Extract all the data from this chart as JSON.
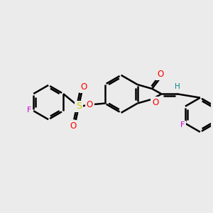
{
  "bg_color": "#ebebeb",
  "bond_color": "#000000",
  "bond_width": 1.8,
  "atom_colors": {
    "F_left": "#cc00cc",
    "F_right": "#cc00cc",
    "O": "#ff0000",
    "S": "#cccc00",
    "H": "#008888"
  },
  "figsize": [
    3.0,
    3.0
  ],
  "dpi": 100,
  "xlim": [
    0,
    10
  ],
  "ylim": [
    0,
    10
  ]
}
